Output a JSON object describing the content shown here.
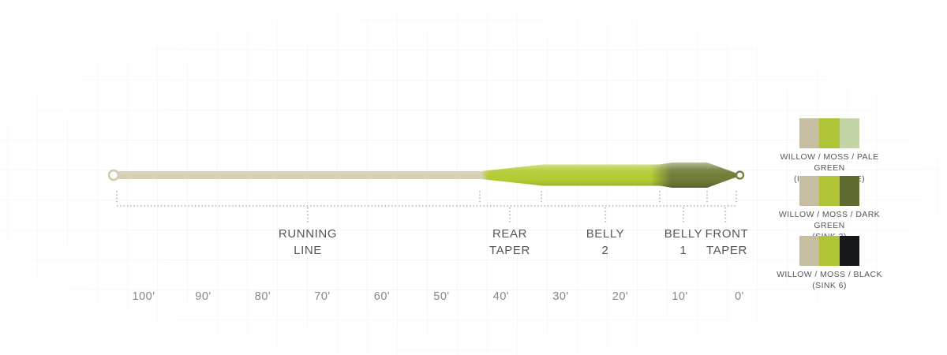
{
  "diagram": {
    "sections": [
      {
        "line1": "RUNNING",
        "line2": "LINE"
      },
      {
        "line1": "REAR",
        "line2": "TAPER"
      },
      {
        "line1": "BELLY",
        "line2": "2"
      },
      {
        "line1": "BELLY",
        "line2": "1"
      },
      {
        "line1": "FRONT",
        "line2": "TAPER"
      }
    ]
  },
  "axis": {
    "ticks": [
      "100'",
      "90'",
      "80'",
      "70'",
      "60'",
      "50'",
      "40'",
      "30'",
      "20'",
      "10'",
      "0'"
    ]
  },
  "colors": {
    "line_tan": "#d7d0b4",
    "line_moss": "#b5cc34",
    "line_olive": "#6e7c36",
    "loop_tan": "#cfc8aa",
    "loop_olive": "#6e7c36",
    "dotted_gray": "#9a9a9d",
    "label_gray": "#55565a",
    "tick_gray": "#85878b"
  },
  "swatches": [
    {
      "name": "willow-moss-pale-green",
      "cells": [
        "#c7bea1",
        "#b0c438",
        "#c3d4a6"
      ],
      "line1": "WILLOW / MOSS / PALE GREEN",
      "line2": "(INTERMEDIATE)"
    },
    {
      "name": "willow-moss-dark-green",
      "cells": [
        "#c7bea1",
        "#b0c438",
        "#5d6b30"
      ],
      "line1": "WILLOW / MOSS / DARK GREEN",
      "line2": "(SINK 3)"
    },
    {
      "name": "willow-moss-black",
      "cells": [
        "#c7bea1",
        "#b0c438",
        "#161719"
      ],
      "line1": "WILLOW / MOSS / BLACK",
      "line2": "(SINK 6)"
    }
  ]
}
